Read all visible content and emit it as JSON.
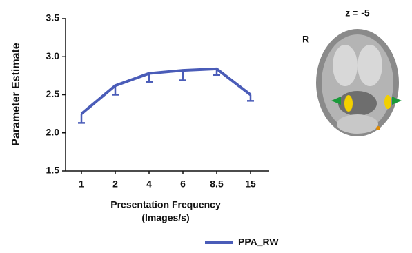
{
  "chart_data": {
    "type": "line",
    "ylabel": "Parameter Estimate",
    "xlabel": [
      "Presentation Frequency",
      "(Images/s)"
    ],
    "categories": [
      "1",
      "2",
      "4",
      "6",
      "8.5",
      "15"
    ],
    "series": [
      {
        "name": "PPA_RW",
        "color": "#4a5cb8",
        "values": [
          2.25,
          2.62,
          2.78,
          2.82,
          2.84,
          2.5
        ],
        "errors": [
          0.12,
          0.12,
          0.11,
          0.13,
          0.08,
          0.08
        ]
      }
    ],
    "ylim": [
      1.5,
      3.5
    ],
    "yticks": [
      {
        "value": 1.5,
        "label": "1.5"
      },
      {
        "value": 2.0,
        "label": "2.0"
      },
      {
        "value": 2.5,
        "label": "2.5"
      },
      {
        "value": 3.0,
        "label": "3.0"
      },
      {
        "value": 3.5,
        "label": "3.5"
      }
    ],
    "annotations": [
      "z = -5",
      "R"
    ]
  }
}
